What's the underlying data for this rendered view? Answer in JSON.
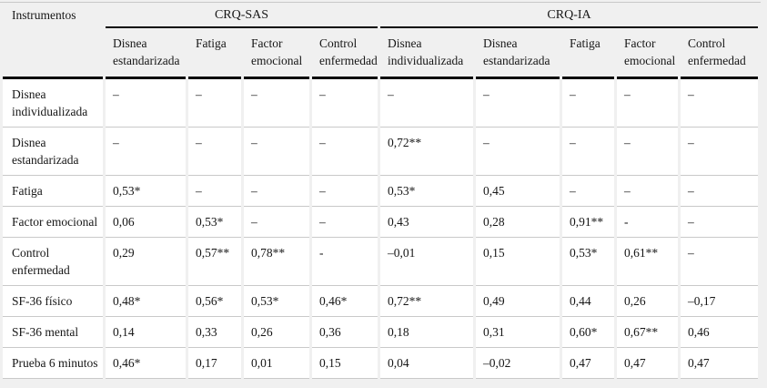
{
  "table": {
    "corner_header": "Instrumentos",
    "groups": [
      {
        "label": "CRQ-SAS",
        "colspan": 4
      },
      {
        "label": "CRQ-IA",
        "colspan": 5
      }
    ],
    "columns": [
      "Disnea estandarizada",
      "Fatiga",
      "Factor emocional",
      "Control enfermedad",
      "Disnea individualizada",
      "Disnea estandarizada",
      "Fatiga",
      "Factor emocional",
      "Control enfermedad"
    ],
    "rows": [
      {
        "label": "Disnea individualizada",
        "values": [
          "–",
          "–",
          "–",
          "–",
          "–",
          "–",
          "–",
          "–",
          "–"
        ]
      },
      {
        "label": "Disnea estandarizada",
        "values": [
          "–",
          "–",
          "–",
          "–",
          "0,72**",
          "–",
          "–",
          "–",
          "–"
        ]
      },
      {
        "label": "Fatiga",
        "values": [
          "0,53*",
          "–",
          "–",
          "–",
          "0,53*",
          "0,45",
          "–",
          "–",
          "–"
        ]
      },
      {
        "label": "Factor emocional",
        "values": [
          "0,06",
          "0,53*",
          "–",
          "–",
          "0,43",
          "0,28",
          "0,91**",
          "-",
          "–"
        ]
      },
      {
        "label": "Control enfermedad",
        "values": [
          "0,29",
          "0,57**",
          "0,78**",
          "-",
          "–0,01",
          "0,15",
          "0,53*",
          "0,61**",
          "–"
        ]
      },
      {
        "label": "SF-36 físico",
        "values": [
          "0,48*",
          "0,56*",
          "0,53*",
          "0,46*",
          "0,72**",
          "0,49",
          "0,44",
          "0,26",
          "–0,17"
        ]
      },
      {
        "label": "SF-36 mental",
        "values": [
          "0,14",
          "0,33",
          "0,26",
          "0,36",
          "0,18",
          "0,31",
          "0,60*",
          "0,67**",
          "0,46"
        ]
      },
      {
        "label": "Prueba 6 minutos",
        "values": [
          "0,46*",
          "0,17",
          "0,01",
          "0,15",
          "0,04",
          "–0,02",
          "0,47",
          "0,47",
          "0,47"
        ]
      }
    ]
  },
  "colors": {
    "page-bg": "#f0f0f0",
    "cell-bg": "#ffffff",
    "grid-color": "#c9c9c9",
    "rule-color": "#0a0a0a",
    "text-color": "#161616"
  }
}
